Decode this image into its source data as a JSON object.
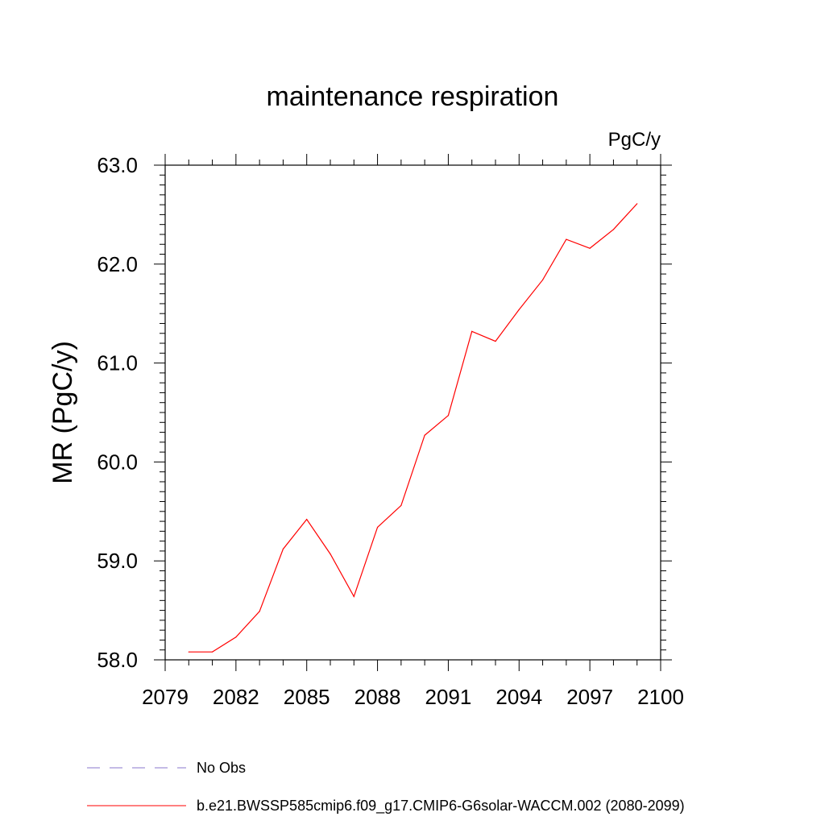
{
  "chart_data": {
    "type": "line",
    "title": "maintenance respiration",
    "units": "PgC/y",
    "ylabel": "MR  (PgC/y)",
    "xlabel": "",
    "xlim": [
      2079,
      2100
    ],
    "ylim": [
      58.0,
      63.0
    ],
    "x_ticks": [
      "2079",
      "2082",
      "2085",
      "2088",
      "2091",
      "2094",
      "2097",
      "2100"
    ],
    "y_ticks": [
      "58.0",
      "59.0",
      "60.0",
      "61.0",
      "62.0",
      "63.0"
    ],
    "series": [
      {
        "name": "b.e21.BWSSP585cmip6.f09_g17.CMIP6-G6solar-WACCM.002 (2080-2099)",
        "color": "#ff0000",
        "style": "solid",
        "x": [
          2080,
          2081,
          2082,
          2083,
          2084,
          2085,
          2086,
          2087,
          2088,
          2089,
          2090,
          2091,
          2092,
          2093,
          2094,
          2095,
          2096,
          2097,
          2098,
          2099
        ],
        "values": [
          58.08,
          58.08,
          58.23,
          58.49,
          59.12,
          59.42,
          59.07,
          58.64,
          59.34,
          59.56,
          60.27,
          60.47,
          61.32,
          61.22,
          61.54,
          61.84,
          62.25,
          62.16,
          62.35,
          62.61
        ]
      }
    ],
    "legend": [
      {
        "label": "No Obs",
        "style": "dashed",
        "color": "#8877cc"
      },
      {
        "label": "b.e21.BWSSP585cmip6.f09_g17.CMIP6-G6solar-WACCM.002 (2080-2099)",
        "style": "solid",
        "color": "#ff0000"
      }
    ],
    "legend_placement": "bottom",
    "grid": false
  }
}
